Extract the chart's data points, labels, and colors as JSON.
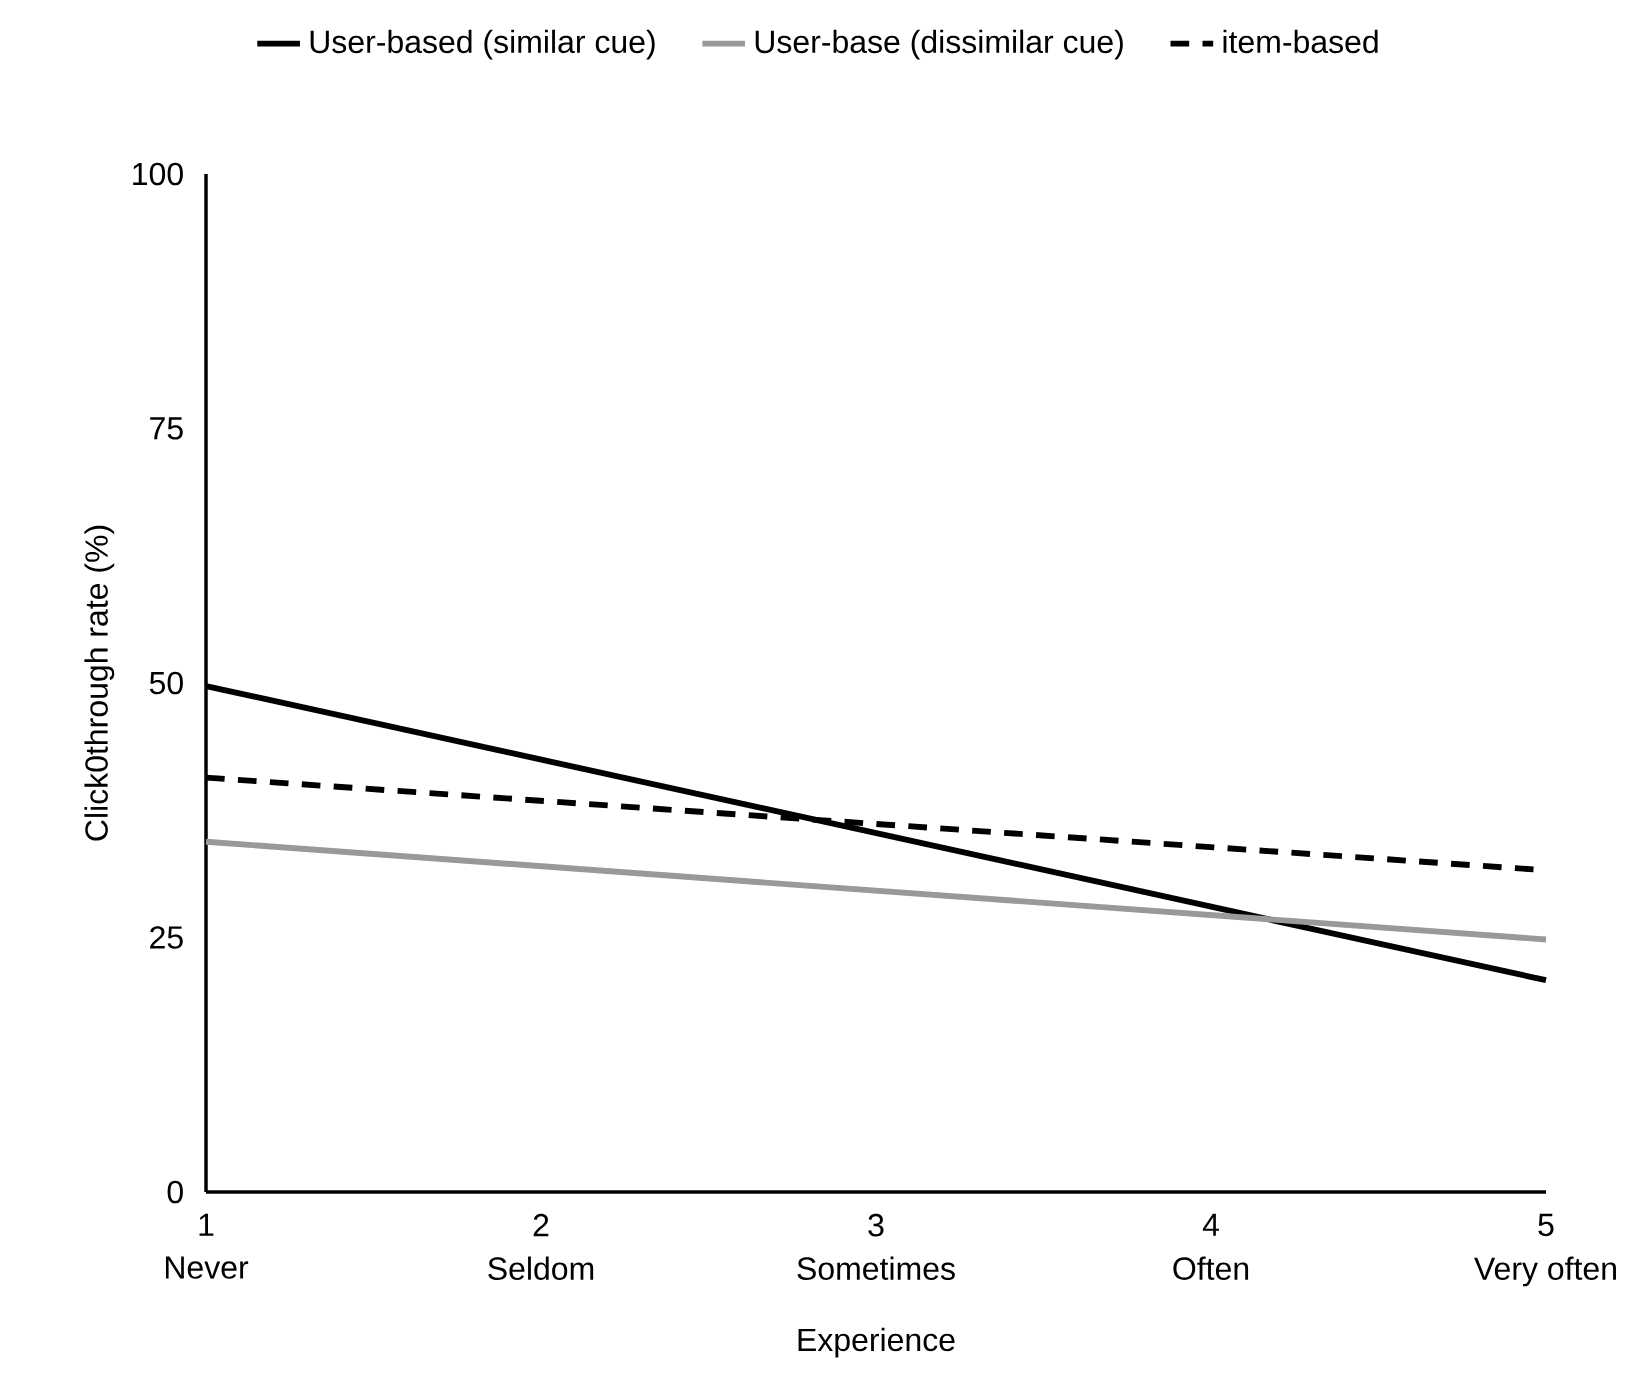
{
  "chart_data": {
    "type": "line",
    "xlabel": "Experience",
    "ylabel": "Click0through rate (%)",
    "x": [
      1,
      5
    ],
    "series": [
      {
        "name": "User-based (similar cue)",
        "color": "#000000",
        "line_style": "solid",
        "values": [
          49.7,
          20.8
        ]
      },
      {
        "name": "User-base (dissimilar cue)",
        "color": "#999999",
        "line_style": "solid",
        "values": [
          34.4,
          24.8
        ]
      },
      {
        "name": "item-based",
        "color": "#000000",
        "line_style": "dashed",
        "values": [
          40.7,
          31.6
        ]
      }
    ],
    "xlim": [
      1,
      5
    ],
    "xticks": [
      1,
      2,
      3,
      4,
      5
    ],
    "ylim": [
      0,
      100
    ],
    "yticks": [
      0,
      25,
      50,
      75,
      100
    ],
    "annotations": [
      "Never",
      "Seldom",
      "Sometimes",
      "Often",
      "Very often"
    ],
    "grid": false,
    "legend": "top",
    "marker": "none"
  }
}
